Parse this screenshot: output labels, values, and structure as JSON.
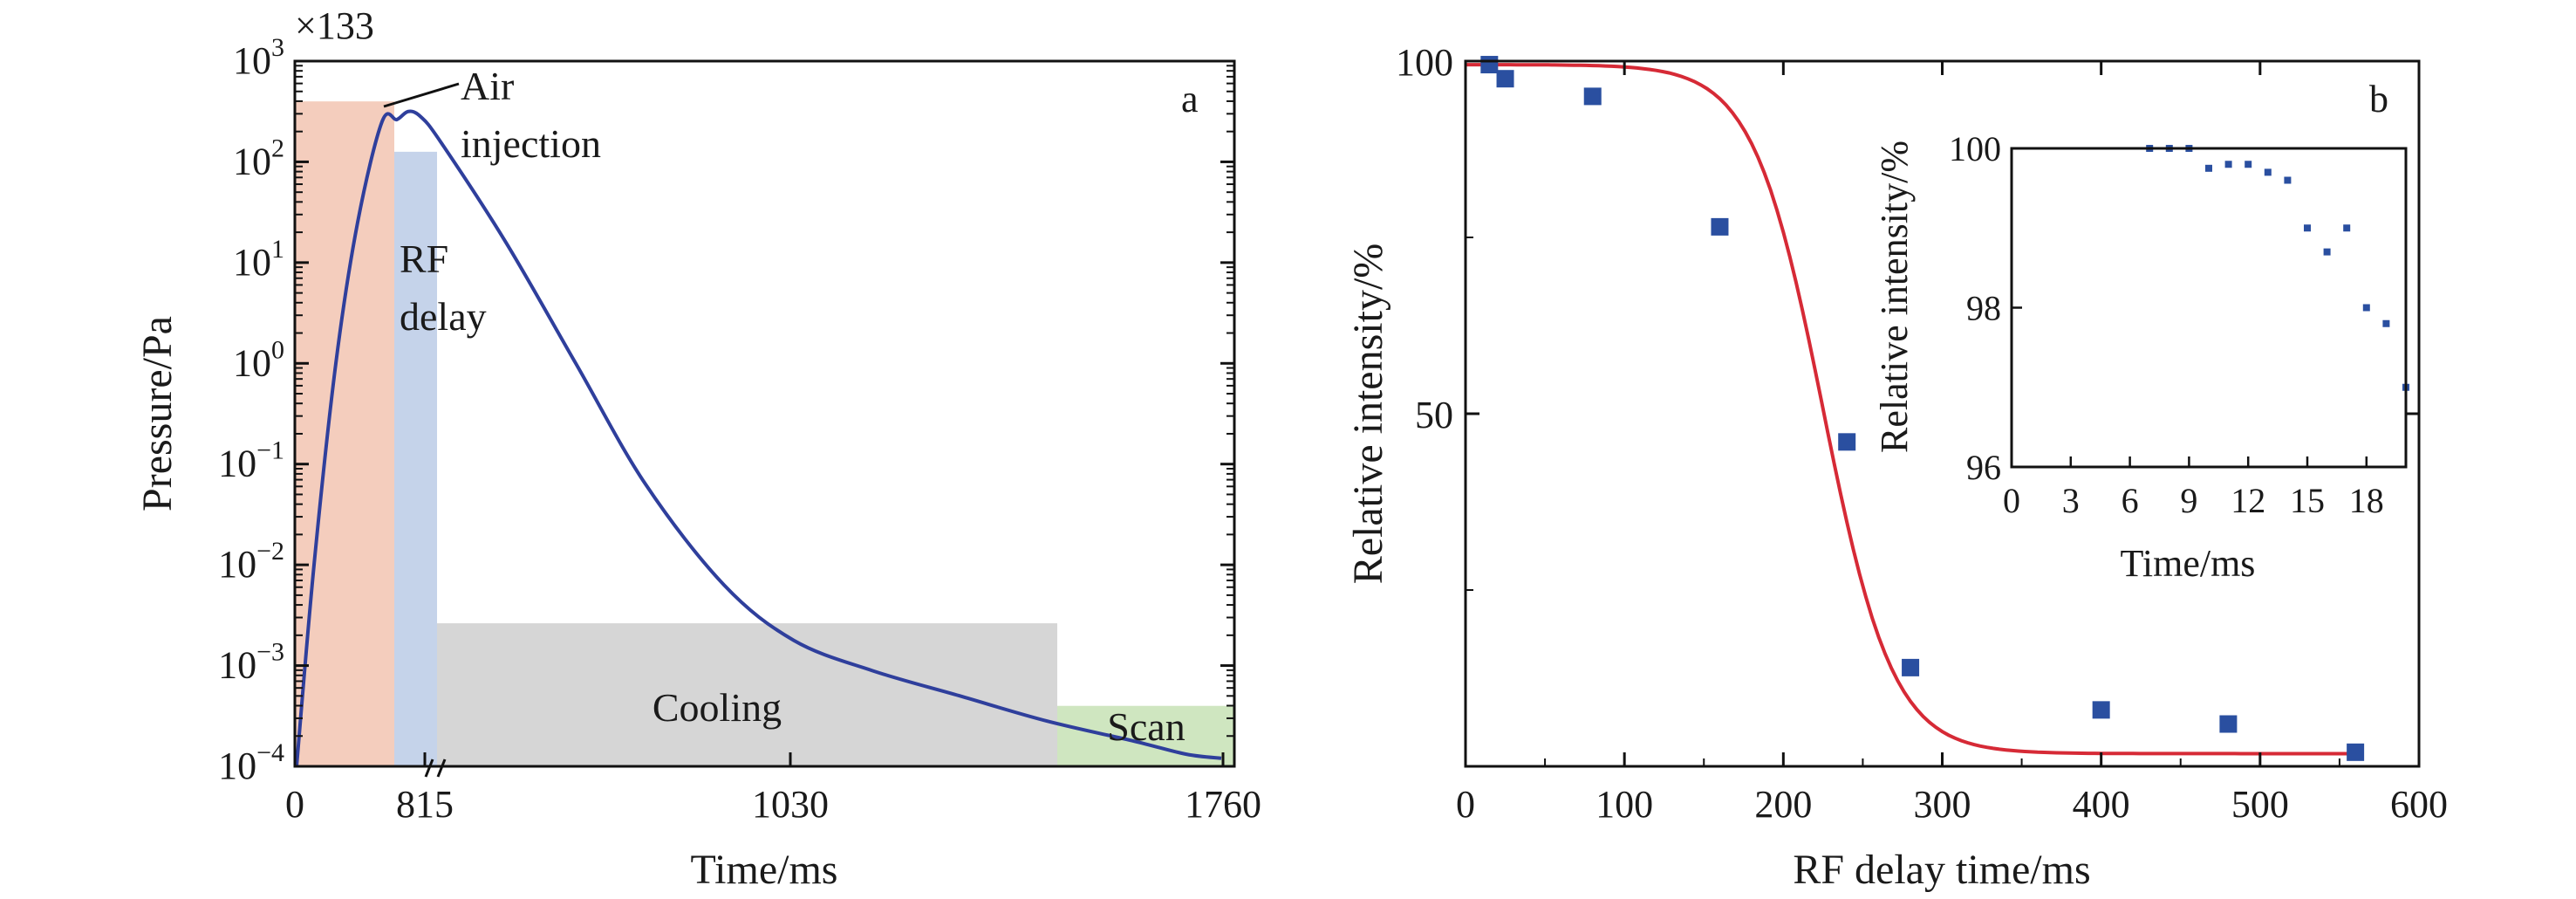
{
  "chart_data": [
    {
      "panel": "a",
      "type": "line",
      "multiplier_label": "×133",
      "xlabel": "Time/ms",
      "ylabel": "Pressure/Pa",
      "yscale": "log",
      "x_ticks": [
        "0",
        "815",
        "1030",
        "1760"
      ],
      "y_ticks": [
        {
          "base": "10",
          "exp": "3"
        },
        {
          "base": "10",
          "exp": "2"
        },
        {
          "base": "10",
          "exp": "1"
        },
        {
          "base": "10",
          "exp": "0"
        },
        {
          "base": "10",
          "exp": "−1"
        },
        {
          "base": "10",
          "exp": "−2"
        },
        {
          "base": "10",
          "exp": "−3"
        },
        {
          "base": "10",
          "exp": "−4"
        }
      ],
      "regions": [
        {
          "name": "air-injection",
          "color": "#f4cdbd",
          "log_top": 2.6
        },
        {
          "name": "rf-delay",
          "color": "#c5d3ea",
          "label_lines": [
            "RF",
            "delay"
          ],
          "log_top": 2.1
        },
        {
          "name": "cooling",
          "color": "#d6d6d6",
          "label_lines": [
            "Cooling"
          ],
          "log_top": -2.58
        },
        {
          "name": "scan",
          "color": "#cfe6c0",
          "label_lines": [
            "Scan"
          ],
          "log_top": -3.4
        }
      ],
      "annotation": [
        "Air",
        "injection"
      ],
      "series_color": "#2f3f9c",
      "series_log_pressure": [
        -4.0,
        -2.0,
        0.0,
        1.4,
        2.4,
        2.42,
        2.5,
        2.45,
        2.2,
        1.2,
        0.0,
        -1.2,
        -2.2,
        -2.75,
        -3.05,
        -3.3,
        -3.55,
        -3.75,
        -3.88,
        -3.92
      ]
    },
    {
      "panel": "b",
      "type": "scatter",
      "xlabel": "RF delay time/ms",
      "ylabel": "Relative intensity/%",
      "xlim": [
        0,
        600
      ],
      "ylim": [
        0,
        100
      ],
      "x_ticks": [
        0,
        100,
        200,
        300,
        400,
        500,
        600
      ],
      "y_ticks": [
        50,
        100
      ],
      "points": [
        {
          "x": 15,
          "y": 99.5
        },
        {
          "x": 25,
          "y": 97.5
        },
        {
          "x": 80,
          "y": 95
        },
        {
          "x": 160,
          "y": 76.5
        },
        {
          "x": 240,
          "y": 46
        },
        {
          "x": 280,
          "y": 14
        },
        {
          "x": 400,
          "y": 8
        },
        {
          "x": 480,
          "y": 6
        },
        {
          "x": 560,
          "y": 2
        }
      ],
      "fit": {
        "color": "#d62a36",
        "top": 99.5,
        "bottom": 1.8,
        "x0": 225,
        "width": 22
      },
      "marker_color": "#2a4fa0",
      "inset": {
        "xlabel": "Time/ms",
        "ylabel": "Relative intensity/%",
        "x_ticks": [
          0,
          3,
          6,
          9,
          12,
          15,
          18
        ],
        "y_ticks": [
          96,
          98,
          100
        ],
        "xlim": [
          0,
          20
        ],
        "ylim": [
          96,
          100
        ],
        "points": [
          {
            "x": 7,
            "y": 100
          },
          {
            "x": 8,
            "y": 100
          },
          {
            "x": 9,
            "y": 100
          },
          {
            "x": 10,
            "y": 99.75
          },
          {
            "x": 11,
            "y": 99.8
          },
          {
            "x": 12,
            "y": 99.8
          },
          {
            "x": 13,
            "y": 99.7
          },
          {
            "x": 14,
            "y": 99.6
          },
          {
            "x": 15,
            "y": 99
          },
          {
            "x": 16,
            "y": 98.7
          },
          {
            "x": 17,
            "y": 99
          },
          {
            "x": 18,
            "y": 98
          },
          {
            "x": 19,
            "y": 97.8
          },
          {
            "x": 20,
            "y": 97
          }
        ]
      }
    }
  ]
}
